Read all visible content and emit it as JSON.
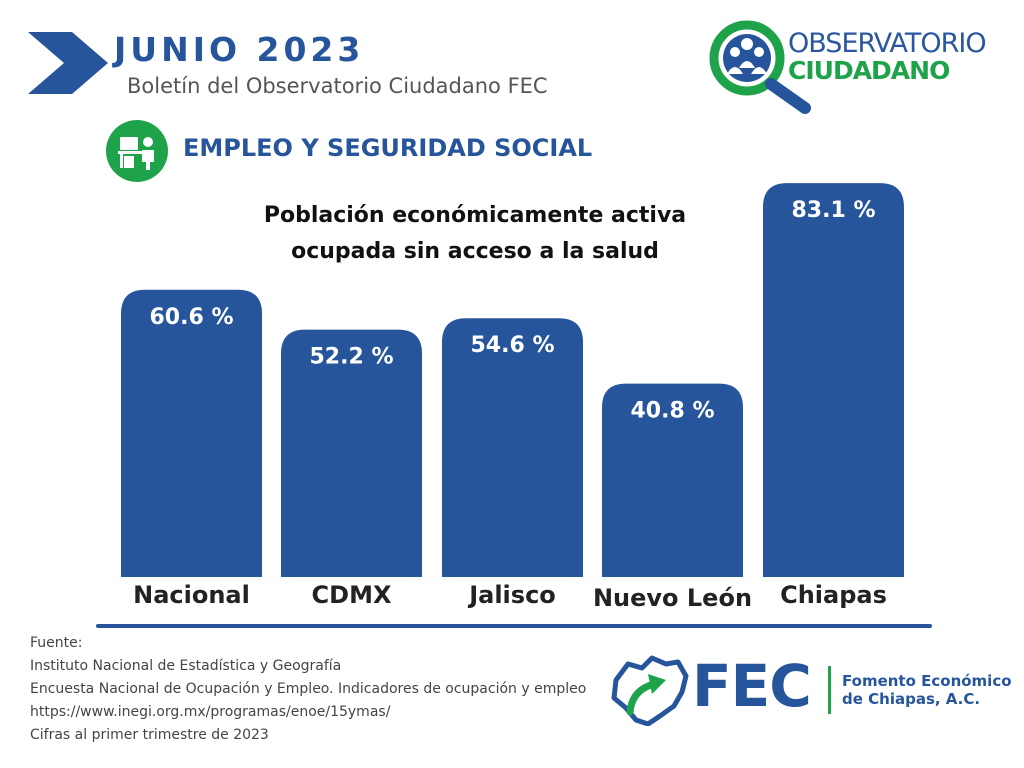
{
  "header": {
    "date_title": "JUNIO 2023",
    "subtitle": "Boletín del Observatorio Ciudadano FEC"
  },
  "logo": {
    "line1": "OBSERVATORIO",
    "line2": "CIUDADANO",
    "icon": "magnifier-people-icon"
  },
  "section": {
    "title": "EMPLEO Y SEGURIDAD SOCIAL",
    "icon": "worker-desk-icon"
  },
  "colors": {
    "primary_blue": "#27559c",
    "accent_green": "#1fa34a",
    "bar": "#27559c"
  },
  "chart_data": {
    "type": "bar",
    "title_lines": [
      "Población económicamente activa",
      "ocupada sin acceso a la salud"
    ],
    "categories": [
      "Nacional",
      "CDMX",
      "Jalisco",
      "Nuevo León",
      "Chiapas"
    ],
    "values": [
      60.6,
      52.2,
      54.6,
      40.8,
      83.1
    ],
    "value_labels": [
      "60.6 %",
      "52.2 %",
      "54.6 %",
      "40.8 %",
      "83.1 %"
    ],
    "xlabel": "",
    "ylabel": "",
    "ylim": [
      0,
      100
    ],
    "grid": false,
    "legend": "none"
  },
  "source": {
    "label": "Fuente:",
    "lines": [
      "Instituto Nacional de Estadística y Geografía",
      "Encuesta Nacional de Ocupación y Empleo. Indicadores de ocupación y empleo",
      "https://www.inegi.org.mx/programas/enoe/15ymas/",
      "Cifras al primer trimestre de 2023"
    ]
  },
  "footer_logo": {
    "acronym": "FEC",
    "name_line1": "Fomento Económico",
    "name_line2": "de Chiapas, A.C.",
    "icon": "chiapas-map-arrow-icon"
  }
}
